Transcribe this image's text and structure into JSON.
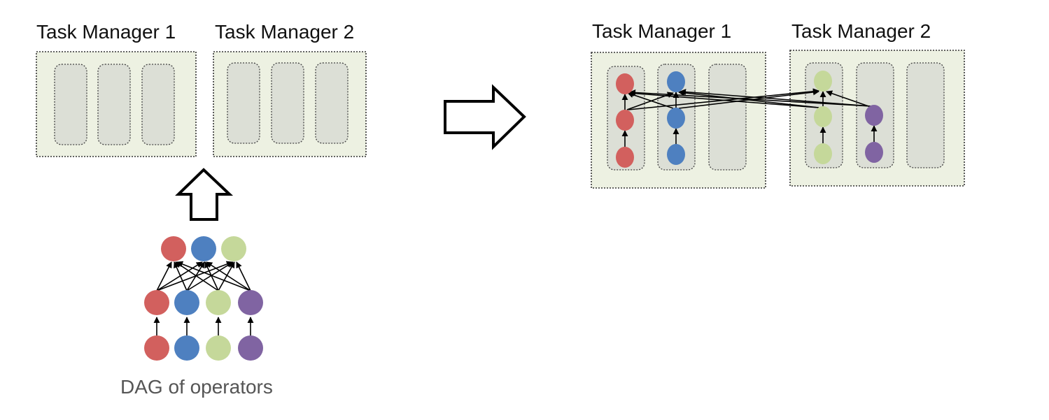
{
  "labels": {
    "left_tm1": "Task Manager 1",
    "left_tm2": "Task Manager 2",
    "right_tm1": "Task Manager 1",
    "right_tm2": "Task Manager 2",
    "dag_caption": "DAG of operators"
  },
  "colors": {
    "red": "#d2605e",
    "blue": "#4e80c0",
    "green": "#c5d89a",
    "purple": "#8064a2",
    "tm_background": "#edf1e2",
    "slot_background": "#dcdfd6"
  },
  "arrows": [
    {
      "name": "placement-up-arrow",
      "direction": "up"
    },
    {
      "name": "transform-right-arrow",
      "direction": "right"
    }
  ]
}
